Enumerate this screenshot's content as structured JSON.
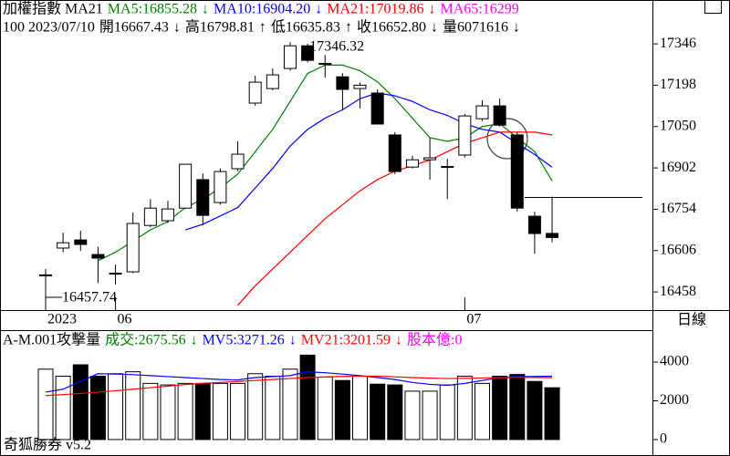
{
  "header": {
    "row1": [
      {
        "text": "加權指數 MA21",
        "color": "#000000"
      },
      {
        "text": "MA5:16855.28",
        "color": "#008000"
      },
      {
        "text": "↓",
        "color": "#008000"
      },
      {
        "text": "MA10:16904.20",
        "color": "#0000ff"
      },
      {
        "text": "↓",
        "color": "#0000ff"
      },
      {
        "text": "MA21:17019.86",
        "color": "#ff0000"
      },
      {
        "text": "↓",
        "color": "#ff0000"
      },
      {
        "text": "MA65:16299",
        "color": "#ff00ff"
      }
    ],
    "row2": [
      {
        "text": "100 2023/07/10",
        "color": "#000000"
      },
      {
        "text": "開16667.43",
        "color": "#000000"
      },
      {
        "text": "↓",
        "color": "#000000"
      },
      {
        "text": "高16798.81",
        "color": "#000000"
      },
      {
        "text": "↑",
        "color": "#000000"
      },
      {
        "text": "低16635.83",
        "color": "#000000"
      },
      {
        "text": "↑",
        "color": "#000000"
      },
      {
        "text": "收16652.80",
        "color": "#000000"
      },
      {
        "text": "↓",
        "color": "#000000"
      },
      {
        "text": "量6071616",
        "color": "#000000"
      },
      {
        "text": "↓",
        "color": "#000000"
      }
    ],
    "volume_row": [
      {
        "text": "A-M.001攻擊量",
        "color": "#000000"
      },
      {
        "text": "成交:2675.56",
        "color": "#008000"
      },
      {
        "text": "↓",
        "color": "#008000"
      },
      {
        "text": "MV5:3271.26",
        "color": "#0000ff"
      },
      {
        "text": "↓",
        "color": "#0000ff"
      },
      {
        "text": "MV21:3201.59",
        "color": "#ff0000"
      },
      {
        "text": "↓",
        "color": "#ff0000"
      },
      {
        "text": "股本億:0",
        "color": "#ff00ff"
      }
    ],
    "period": "日線",
    "footer": "奇狐勝券 v5.2"
  },
  "chart_data": [
    {
      "type": "candlestick",
      "categories": [
        "2023",
        null,
        null,
        null,
        "06",
        null,
        null,
        null,
        null,
        null,
        null,
        null,
        null,
        null,
        null,
        null,
        null,
        null,
        null,
        null,
        null,
        null,
        null,
        null,
        "07",
        null,
        null,
        null,
        null,
        null
      ],
      "open": [
        16517,
        16615,
        16644,
        16592,
        16523,
        16530,
        16696,
        16713,
        16758,
        16860,
        16778,
        16899,
        17134,
        17186,
        17258,
        17339,
        17274,
        17228,
        17186,
        17170,
        17020,
        16905,
        16931,
        16905,
        16948,
        17078,
        17124,
        17020,
        16729,
        16667.43
      ],
      "high": [
        16540,
        16670,
        16677,
        16620,
        16556,
        16742,
        16790,
        16784,
        16915,
        16882,
        16900,
        16997,
        17232,
        17258,
        17352,
        17346.32,
        17306,
        17241,
        17208,
        17183,
        17030,
        16945,
        17010,
        16935,
        17095,
        17144,
        17150,
        17030,
        16745,
        16798.81
      ],
      "low": [
        16457.74,
        16600,
        16605,
        16490,
        16484,
        16525,
        16690,
        16705,
        16755,
        16696,
        16770,
        16890,
        17125,
        17180,
        17250,
        17280,
        17225,
        17108,
        17115,
        17068,
        16880,
        16900,
        16860,
        16790,
        16940,
        17070,
        17050,
        16745,
        16595,
        16635.83
      ],
      "close": [
        16519,
        16634,
        16628,
        16579,
        16525,
        16703,
        16758,
        16755,
        16915,
        16732,
        16889,
        16951,
        17209,
        17235,
        17339,
        17287,
        17276,
        17183,
        17198,
        17059,
        16889,
        16931,
        16938,
        16907,
        17088,
        17124,
        17055,
        16758,
        16667,
        16652.8
      ],
      "series": [
        {
          "name": "MA5",
          "color": "#008000",
          "values": [
            null,
            null,
            null,
            16570,
            16600,
            16640,
            16680,
            16710,
            16760,
            16790,
            16830,
            16880,
            16960,
            17040,
            17140,
            17240,
            17270,
            17270,
            17250,
            17210,
            17150,
            17080,
            17010,
            16997,
            17010,
            17050,
            17060,
            17010,
            16960,
            16855.28
          ]
        },
        {
          "name": "MA10",
          "color": "#0000ff",
          "values": [
            null,
            null,
            null,
            null,
            null,
            null,
            null,
            null,
            16680,
            16700,
            16730,
            16760,
            16830,
            16900,
            16980,
            17040,
            17080,
            17110,
            17150,
            17170,
            17160,
            17140,
            17110,
            17090,
            17060,
            17040,
            17030,
            16990,
            16950,
            16904.2
          ]
        },
        {
          "name": "MA21",
          "color": "#ff0000",
          "values": [
            null,
            null,
            null,
            null,
            null,
            null,
            null,
            null,
            null,
            null,
            null,
            16410,
            16480,
            16540,
            16600,
            16660,
            16720,
            16770,
            16820,
            16860,
            16890,
            16910,
            16930,
            16960,
            16990,
            17010,
            17030,
            17030,
            17030,
            17019.86
          ]
        }
      ],
      "annotations": [
        {
          "text": "17346.32",
          "index": 15,
          "value": 17346.32
        },
        {
          "text": "16457.74",
          "index": 0,
          "value": 16457.74
        }
      ],
      "ylim": [
        16393,
        17503
      ],
      "yticks": [
        17346,
        17198,
        17050,
        16902,
        16754,
        16606,
        16458
      ]
    },
    {
      "type": "volume",
      "values": [
        3636,
        3270,
        3860,
        3270,
        3400,
        3500,
        2900,
        2820,
        2900,
        2900,
        2900,
        2900,
        3400,
        3270,
        3636,
        4360,
        3230,
        3050,
        3270,
        2860,
        2820,
        2500,
        2500,
        2820,
        3270,
        2900,
        3270,
        3360,
        3000,
        2675.56
      ],
      "series": [
        {
          "name": "MV5",
          "color": "#0000ff",
          "values": [
            2450,
            2600,
            3000,
            3400,
            3380,
            3350,
            3300,
            3250,
            3200,
            3150,
            3100,
            3080,
            3200,
            3250,
            3300,
            3500,
            3450,
            3380,
            3300,
            3200,
            3100,
            2950,
            2850,
            2800,
            2900,
            3050,
            3200,
            3250,
            3260,
            3271.26
          ]
        },
        {
          "name": "MV21",
          "color": "#ff0000",
          "values": [
            2270,
            2320,
            2380,
            2450,
            2520,
            2600,
            2680,
            2760,
            2840,
            2900,
            2950,
            3000,
            3050,
            3100,
            3150,
            3200,
            3230,
            3260,
            3280,
            3270,
            3240,
            3200,
            3170,
            3150,
            3160,
            3180,
            3200,
            3210,
            3205,
            3201.59
          ]
        }
      ],
      "ylim": [
        -850,
        5650
      ],
      "yticks": [
        4000,
        2000,
        0
      ]
    }
  ]
}
